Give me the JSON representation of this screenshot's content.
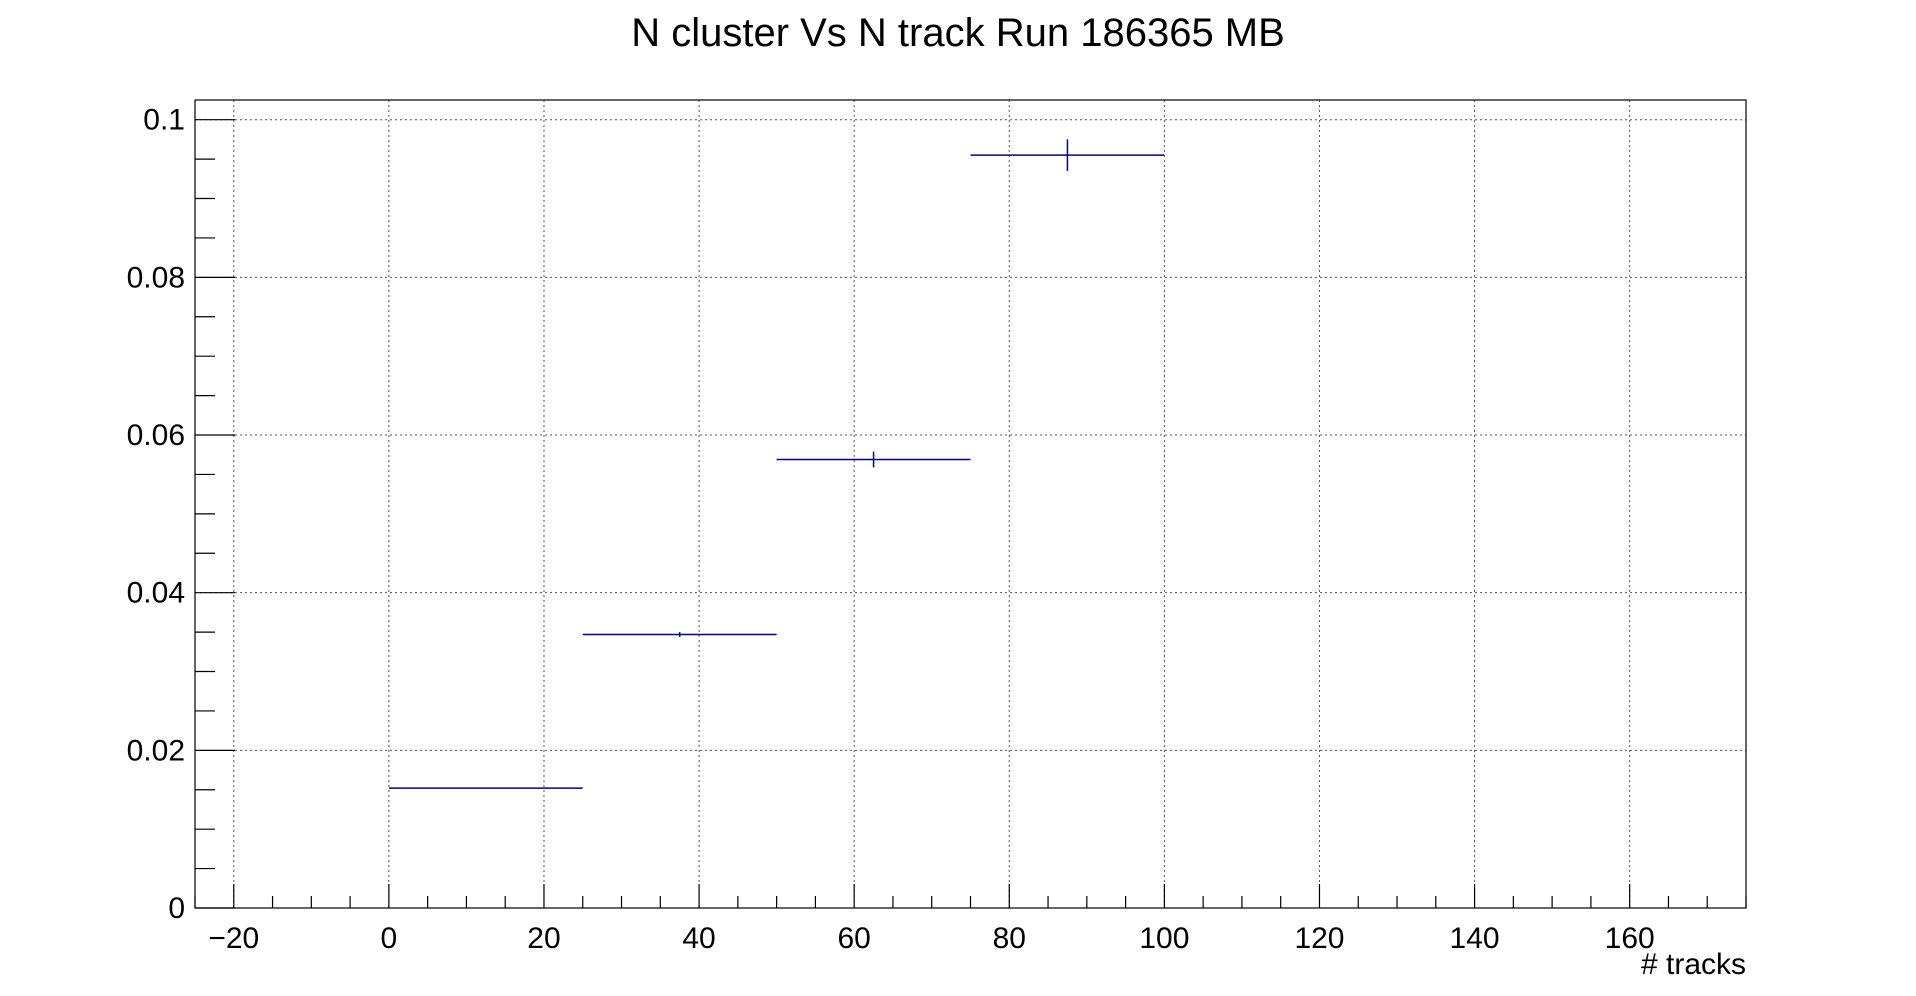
{
  "chart_data": {
    "type": "scatter",
    "title": "N cluster Vs N track Run 186365 MB",
    "xlabel": "# tracks",
    "ylabel": "",
    "xlim": [
      -25,
      175
    ],
    "ylim": [
      0,
      0.1025
    ],
    "grid": true,
    "x_ticks": [
      -20,
      0,
      20,
      40,
      60,
      80,
      100,
      120,
      140,
      160
    ],
    "x_tick_labels": [
      "−20",
      "0",
      "20",
      "40",
      "60",
      "80",
      "100",
      "120",
      "140",
      "160"
    ],
    "y_ticks": [
      0,
      0.02,
      0.04,
      0.06,
      0.08,
      0.1
    ],
    "y_tick_labels": [
      "0",
      "0.02",
      "0.04",
      "0.06",
      "0.08",
      "0.1"
    ],
    "x_minor_step": 5,
    "y_minor_step": 0.005,
    "series": [
      {
        "color": "#00008b",
        "points": [
          {
            "x": 12.5,
            "x_low": 0,
            "x_high": 25,
            "y": 0.0152,
            "y_err": 0.0
          },
          {
            "x": 37.5,
            "x_low": 25,
            "x_high": 50,
            "y": 0.0347,
            "y_err": 0.0003
          },
          {
            "x": 62.5,
            "x_low": 50,
            "x_high": 75,
            "y": 0.0569,
            "y_err": 0.001
          },
          {
            "x": 87.5,
            "x_low": 75,
            "x_high": 100,
            "y": 0.0955,
            "y_err": 0.002
          }
        ]
      }
    ]
  }
}
